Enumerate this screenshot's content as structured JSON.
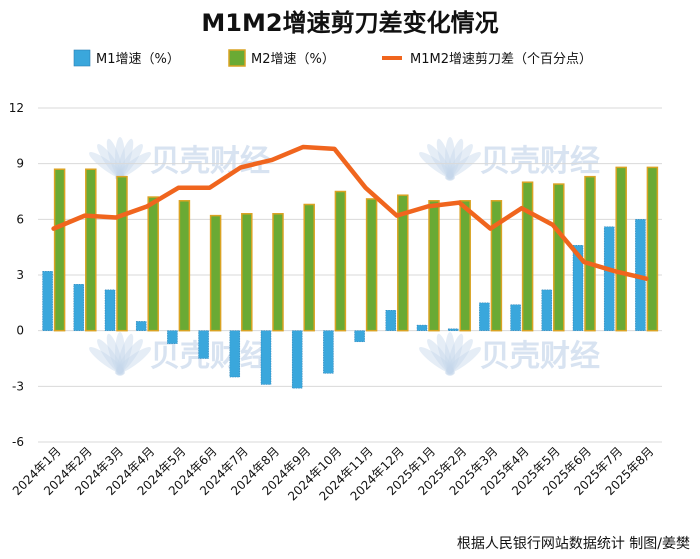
{
  "chart_data": {
    "type": "bar",
    "title": "M1M2增速剪刀差变化情况",
    "categories": [
      "2024年1月",
      "2024年2月",
      "2024年3月",
      "2024年4月",
      "2024年5月",
      "2024年6月",
      "2024年7月",
      "2024年8月",
      "2024年9月",
      "2024年10月",
      "2024年11月",
      "2024年12月",
      "2025年1月",
      "2025年2月",
      "2025年3月",
      "2025年4月",
      "2025年5月",
      "2025年6月",
      "2025年7月",
      "2025年8月"
    ],
    "series": [
      {
        "name": "M1增速（%）",
        "type": "bar",
        "color": "#3aa7dc",
        "values": [
          3.2,
          2.5,
          2.2,
          0.5,
          -0.7,
          -1.5,
          -2.5,
          -2.9,
          -3.1,
          -2.3,
          -0.6,
          1.1,
          0.3,
          0.1,
          1.5,
          1.4,
          2.2,
          4.6,
          5.6,
          6.0
        ]
      },
      {
        "name": "M2增速（%）",
        "type": "bar",
        "color": "#6aaa34",
        "values": [
          8.7,
          8.7,
          8.3,
          7.2,
          7.0,
          6.2,
          6.3,
          6.3,
          6.8,
          7.5,
          7.1,
          7.3,
          7.0,
          7.0,
          7.0,
          8.0,
          7.9,
          8.3,
          8.8,
          8.8
        ]
      },
      {
        "name": "M1M2增速剪刀差（个百分点）",
        "type": "line",
        "color": "#f0651e",
        "values": [
          5.5,
          6.2,
          6.1,
          6.7,
          7.7,
          7.7,
          8.8,
          9.2,
          9.9,
          9.8,
          7.7,
          6.2,
          6.7,
          6.9,
          5.5,
          6.6,
          5.7,
          3.7,
          3.2,
          2.8
        ]
      }
    ],
    "ylim": [
      -6,
      12
    ],
    "yticks": [
      "12",
      "9",
      "6",
      "3",
      "0",
      "-3",
      "-6"
    ],
    "grid": true,
    "legend_position": "top"
  },
  "watermark": "贝壳财经",
  "source_note": "根据人民银行网站数据统计  制图/姜樊"
}
